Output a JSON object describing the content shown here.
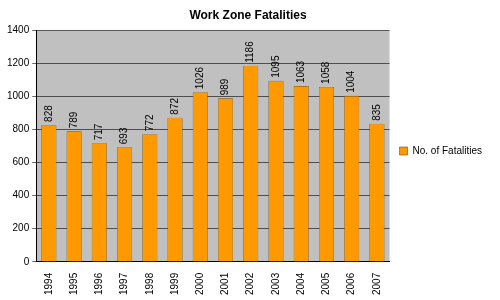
{
  "chart_data": {
    "type": "bar",
    "title": "Work Zone Fatalities",
    "categories": [
      "1994",
      "1995",
      "1996",
      "1997",
      "1998",
      "1999",
      "2000",
      "2001",
      "2002",
      "2003",
      "2004",
      "2005",
      "2006",
      "2007"
    ],
    "series": [
      {
        "name": "No. of Fatalities",
        "color": "#ff9900",
        "values": [
          828,
          789,
          717,
          693,
          772,
          872,
          1026,
          989,
          1186,
          1095,
          1063,
          1058,
          1004,
          835
        ]
      }
    ],
    "ylim": [
      0,
      1400
    ],
    "yticks": [
      0,
      200,
      400,
      600,
      800,
      1000,
      1200,
      1400
    ],
    "grid": true,
    "legend": "right",
    "data_labels": true
  }
}
